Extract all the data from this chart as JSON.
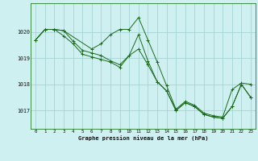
{
  "title": "Graphe pression niveau de la mer (hPa)",
  "bg_color": "#cff0f0",
  "grid_color": "#9ecece",
  "line_color": "#1a6b1a",
  "xlim": [
    -0.5,
    23.5
  ],
  "ylim": [
    1016.3,
    1021.1
  ],
  "yticks": [
    1017,
    1018,
    1019,
    1020
  ],
  "xticks": [
    0,
    1,
    2,
    3,
    4,
    5,
    6,
    7,
    8,
    9,
    10,
    11,
    12,
    13,
    14,
    15,
    16,
    17,
    18,
    19,
    20,
    21,
    22,
    23
  ],
  "series1_x": [
    0,
    1,
    2,
    3,
    4,
    5,
    6,
    7,
    8,
    9,
    10,
    11,
    12,
    13,
    14,
    15,
    16,
    17,
    18,
    19,
    20,
    21,
    22,
    23
  ],
  "series1_y": [
    1019.7,
    1020.1,
    1020.1,
    1020.05,
    1019.65,
    1019.3,
    1019.2,
    1019.1,
    1018.9,
    1018.75,
    1019.1,
    1019.9,
    1018.9,
    1018.1,
    1017.75,
    1017.0,
    1017.3,
    1017.15,
    1016.85,
    1016.75,
    1016.7,
    1017.15,
    1018.0,
    1017.5
  ],
  "series2_x": [
    0,
    1,
    2,
    3,
    4,
    5,
    6,
    7,
    8,
    9,
    10,
    11,
    12,
    13,
    14,
    15,
    16,
    17,
    18,
    19,
    20,
    21,
    22,
    23
  ],
  "series2_y": [
    1019.7,
    1020.1,
    1020.1,
    1019.85,
    1019.55,
    1019.15,
    1019.05,
    1018.95,
    1018.85,
    1018.65,
    1019.1,
    1019.35,
    1018.75,
    1018.1,
    1017.75,
    1017.0,
    1017.3,
    1017.15,
    1016.85,
    1016.75,
    1016.7,
    1017.15,
    1018.0,
    1017.5
  ],
  "series3_x": [
    0,
    1,
    2,
    3,
    6,
    7,
    8,
    9,
    10,
    11,
    12,
    13,
    14,
    15,
    16,
    17,
    18,
    19,
    20,
    21,
    22,
    23
  ],
  "series3_y": [
    1019.7,
    1020.1,
    1020.1,
    1020.05,
    1019.35,
    1019.55,
    1019.9,
    1020.1,
    1020.1,
    1020.55,
    1019.7,
    1018.85,
    1017.95,
    1017.05,
    1017.35,
    1017.2,
    1016.9,
    1016.8,
    1016.75,
    1017.8,
    1018.05,
    1018.0
  ]
}
